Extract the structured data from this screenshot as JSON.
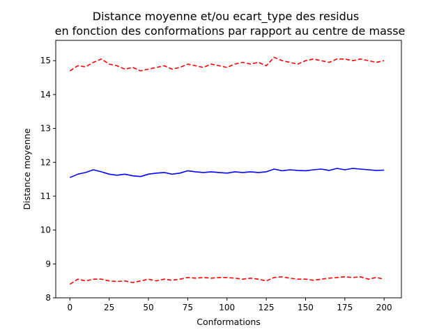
{
  "chart_data": {
    "type": "line",
    "title": [
      "Distance moyenne et/ou ecart_type des residus",
      "en fonction des conformations par rapport au centre de masse"
    ],
    "xlabel": "Conformations",
    "ylabel": "Distance moyenne",
    "xlim": [
      -9,
      211
    ],
    "ylim": [
      8,
      15.6
    ],
    "xticks": [
      0,
      25,
      50,
      75,
      100,
      125,
      150,
      175,
      200
    ],
    "yticks": [
      8,
      9,
      10,
      11,
      12,
      13,
      14,
      15
    ],
    "grid": false,
    "legend": "none",
    "series": [
      {
        "color": "#ff0000",
        "linestyle": "dashed",
        "x": [
          0,
          5,
          10,
          15,
          20,
          25,
          30,
          35,
          40,
          45,
          50,
          55,
          60,
          65,
          70,
          75,
          80,
          85,
          90,
          95,
          100,
          105,
          110,
          115,
          120,
          125,
          130,
          135,
          140,
          145,
          150,
          155,
          160,
          165,
          170,
          175,
          180,
          185,
          190,
          195,
          200
        ],
        "values": [
          14.7,
          14.85,
          14.82,
          14.95,
          15.05,
          14.9,
          14.85,
          14.75,
          14.8,
          14.7,
          14.75,
          14.8,
          14.85,
          14.75,
          14.8,
          14.9,
          14.85,
          14.8,
          14.9,
          14.85,
          14.8,
          14.9,
          14.95,
          14.9,
          14.95,
          14.85,
          15.1,
          15.0,
          14.95,
          14.9,
          15.0,
          15.05,
          15.0,
          14.95,
          15.05,
          15.05,
          15.0,
          15.05,
          15.0,
          14.95,
          15.0
        ]
      },
      {
        "color": "#0000ff",
        "linestyle": "solid",
        "x": [
          0,
          5,
          10,
          15,
          20,
          25,
          30,
          35,
          40,
          45,
          50,
          55,
          60,
          65,
          70,
          75,
          80,
          85,
          90,
          95,
          100,
          105,
          110,
          115,
          120,
          125,
          130,
          135,
          140,
          145,
          150,
          155,
          160,
          165,
          170,
          175,
          180,
          185,
          190,
          195,
          200
        ],
        "values": [
          11.55,
          11.65,
          11.7,
          11.78,
          11.72,
          11.65,
          11.62,
          11.65,
          11.6,
          11.58,
          11.65,
          11.68,
          11.7,
          11.65,
          11.68,
          11.75,
          11.72,
          11.7,
          11.72,
          11.7,
          11.68,
          11.72,
          11.7,
          11.72,
          11.7,
          11.72,
          11.8,
          11.75,
          11.78,
          11.76,
          11.75,
          11.78,
          11.8,
          11.76,
          11.82,
          11.78,
          11.82,
          11.8,
          11.78,
          11.76,
          11.77
        ]
      },
      {
        "color": "#ff0000",
        "linestyle": "dashed",
        "x": [
          0,
          5,
          10,
          15,
          20,
          25,
          30,
          35,
          40,
          45,
          50,
          55,
          60,
          65,
          70,
          75,
          80,
          85,
          90,
          95,
          100,
          105,
          110,
          115,
          120,
          125,
          130,
          135,
          140,
          145,
          150,
          155,
          160,
          165,
          170,
          175,
          180,
          185,
          190,
          195,
          200
        ],
        "values": [
          8.4,
          8.55,
          8.5,
          8.55,
          8.55,
          8.5,
          8.48,
          8.5,
          8.45,
          8.5,
          8.55,
          8.5,
          8.55,
          8.52,
          8.55,
          8.6,
          8.58,
          8.6,
          8.58,
          8.6,
          8.6,
          8.58,
          8.55,
          8.58,
          8.55,
          8.5,
          8.6,
          8.62,
          8.58,
          8.55,
          8.55,
          8.52,
          8.55,
          8.58,
          8.6,
          8.62,
          8.6,
          8.62,
          8.55,
          8.6,
          8.55
        ]
      }
    ]
  }
}
